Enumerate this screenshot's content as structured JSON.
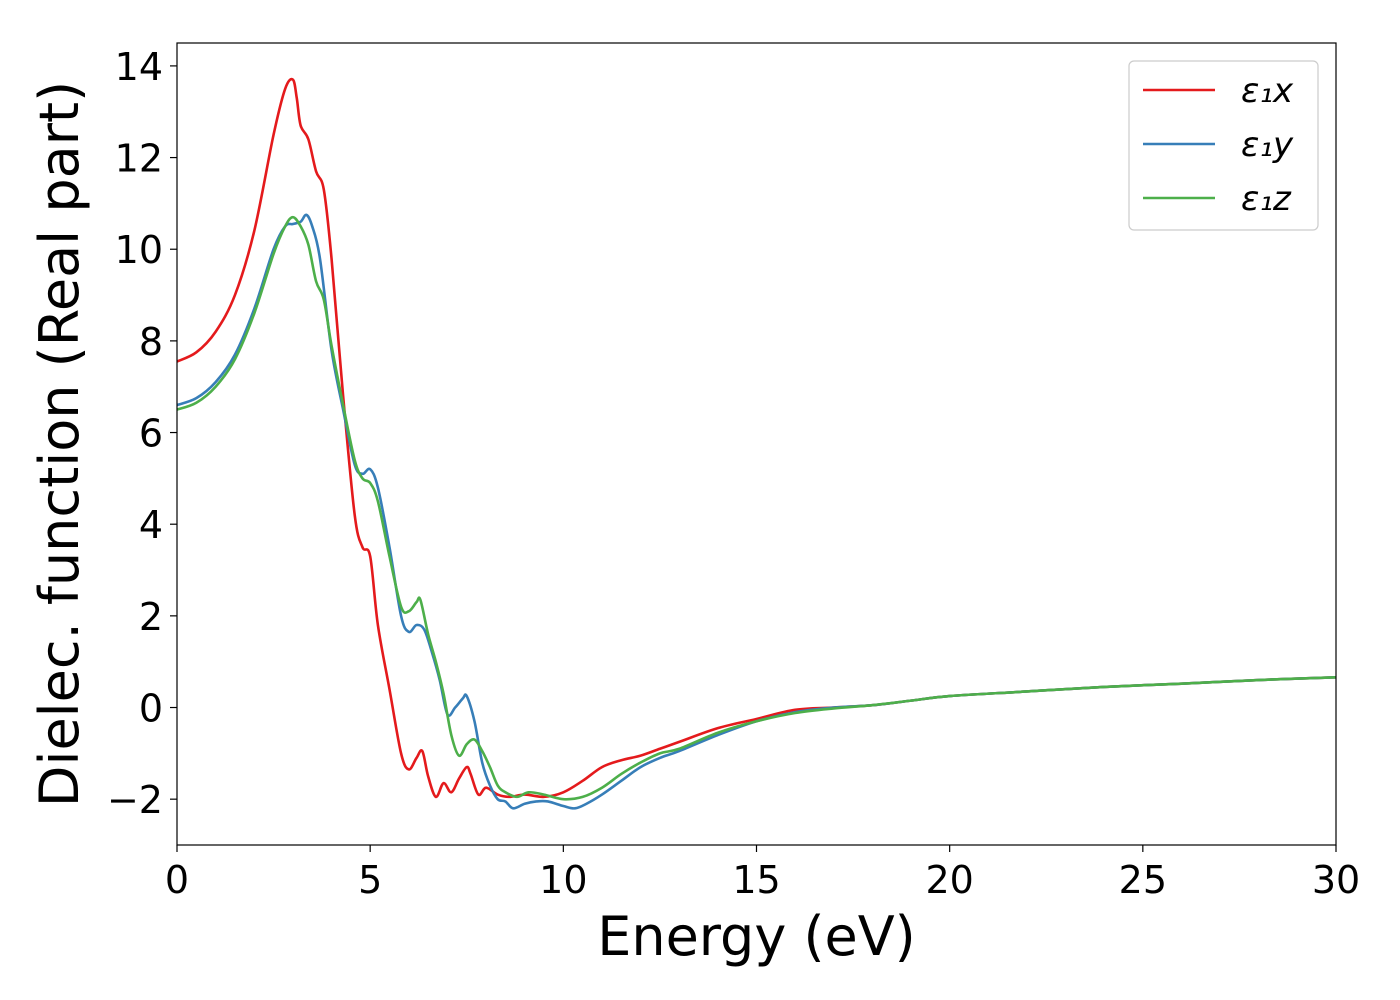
{
  "chart_data": {
    "type": "line",
    "title": "",
    "xlabel": "Energy (eV)",
    "ylabel": "Dielec. function (Real part)",
    "xlim": [
      0,
      30
    ],
    "ylim": [
      -3,
      14.5
    ],
    "xticks": [
      0,
      5,
      10,
      15,
      20,
      25,
      30
    ],
    "xtick_labels": [
      "0",
      "5",
      "10",
      "15",
      "20",
      "25",
      "30"
    ],
    "yticks": [
      -2,
      0,
      2,
      4,
      6,
      8,
      10,
      12,
      14
    ],
    "ytick_labels": [
      "−2",
      "0",
      "2",
      "4",
      "6",
      "8",
      "10",
      "12",
      "14"
    ],
    "grid": false,
    "legend_position": "top-right",
    "series": [
      {
        "name": "ε₁x",
        "color": "#e41a1c",
        "x": [
          0,
          0.5,
          1.0,
          1.5,
          2.0,
          2.5,
          2.8,
          3.0,
          3.1,
          3.2,
          3.4,
          3.6,
          3.8,
          4.0,
          4.3,
          4.6,
          4.8,
          5.0,
          5.2,
          5.5,
          5.8,
          6.0,
          6.2,
          6.35,
          6.5,
          6.7,
          6.9,
          7.1,
          7.3,
          7.5,
          7.6,
          7.8,
          8.0,
          8.3,
          8.6,
          9.0,
          9.5,
          10.0,
          10.5,
          11.0,
          11.5,
          12.0,
          12.5,
          13.0,
          14.0,
          15.0,
          16.0,
          17.0,
          18.0,
          19.0,
          20.0,
          22.0,
          24.0,
          26.0,
          28.0,
          30.0
        ],
        "y": [
          7.55,
          7.75,
          8.2,
          9.0,
          10.4,
          12.5,
          13.5,
          13.7,
          13.3,
          12.7,
          12.4,
          11.7,
          11.3,
          9.8,
          6.8,
          4.2,
          3.5,
          3.3,
          1.8,
          0.4,
          -1.0,
          -1.35,
          -1.1,
          -0.95,
          -1.5,
          -1.95,
          -1.65,
          -1.85,
          -1.55,
          -1.3,
          -1.45,
          -1.9,
          -1.75,
          -1.9,
          -1.95,
          -1.9,
          -1.95,
          -1.85,
          -1.6,
          -1.3,
          -1.15,
          -1.05,
          -0.9,
          -0.75,
          -0.45,
          -0.25,
          -0.05,
          0.0,
          0.05,
          0.15,
          0.25,
          0.35,
          0.45,
          0.52,
          0.6,
          0.66
        ]
      },
      {
        "name": "ε₁y",
        "color": "#377eb8",
        "x": [
          0,
          0.5,
          1.0,
          1.5,
          2.0,
          2.5,
          2.8,
          3.0,
          3.2,
          3.35,
          3.5,
          3.7,
          4.0,
          4.3,
          4.6,
          4.8,
          5.0,
          5.2,
          5.5,
          5.8,
          6.0,
          6.2,
          6.4,
          6.6,
          6.8,
          7.0,
          7.2,
          7.4,
          7.5,
          7.7,
          7.9,
          8.1,
          8.3,
          8.5,
          8.7,
          9.0,
          9.3,
          9.6,
          10.0,
          10.3,
          10.6,
          11.0,
          11.5,
          12.0,
          12.5,
          13.0,
          14.0,
          15.0,
          16.0,
          17.0,
          18.0,
          19.0,
          20.0,
          22.0,
          24.0,
          26.0,
          28.0,
          30.0
        ],
        "y": [
          6.6,
          6.75,
          7.1,
          7.7,
          8.7,
          10.0,
          10.5,
          10.55,
          10.6,
          10.75,
          10.5,
          9.8,
          7.8,
          6.5,
          5.3,
          5.1,
          5.2,
          4.8,
          3.5,
          2.0,
          1.65,
          1.8,
          1.7,
          1.2,
          0.6,
          -0.15,
          0.0,
          0.2,
          0.25,
          -0.3,
          -1.2,
          -1.7,
          -2.0,
          -2.05,
          -2.2,
          -2.1,
          -2.05,
          -2.05,
          -2.15,
          -2.2,
          -2.1,
          -1.9,
          -1.6,
          -1.3,
          -1.1,
          -0.95,
          -0.6,
          -0.3,
          -0.1,
          0.0,
          0.05,
          0.15,
          0.25,
          0.35,
          0.45,
          0.52,
          0.6,
          0.66
        ]
      },
      {
        "name": "ε₁z",
        "color": "#4daf4a",
        "x": [
          0,
          0.5,
          1.0,
          1.5,
          2.0,
          2.5,
          2.8,
          3.0,
          3.2,
          3.4,
          3.6,
          3.8,
          4.0,
          4.3,
          4.6,
          4.8,
          5.0,
          5.2,
          5.5,
          5.8,
          6.0,
          6.2,
          6.3,
          6.5,
          6.7,
          6.9,
          7.1,
          7.3,
          7.5,
          7.7,
          7.9,
          8.1,
          8.3,
          8.5,
          8.8,
          9.1,
          9.5,
          10.0,
          10.5,
          11.0,
          11.5,
          12.0,
          12.5,
          13.0,
          14.0,
          15.0,
          16.0,
          17.0,
          18.0,
          19.0,
          20.0,
          22.0,
          24.0,
          26.0,
          28.0,
          30.0
        ],
        "y": [
          6.5,
          6.65,
          7.0,
          7.6,
          8.6,
          9.9,
          10.5,
          10.7,
          10.5,
          10.1,
          9.3,
          8.9,
          7.9,
          6.6,
          5.4,
          5.0,
          4.9,
          4.5,
          3.3,
          2.2,
          2.1,
          2.3,
          2.35,
          1.6,
          1.0,
          0.3,
          -0.6,
          -1.05,
          -0.8,
          -0.7,
          -0.95,
          -1.3,
          -1.7,
          -1.85,
          -1.95,
          -1.85,
          -1.9,
          -2.0,
          -1.95,
          -1.75,
          -1.45,
          -1.2,
          -1.0,
          -0.9,
          -0.55,
          -0.3,
          -0.12,
          -0.02,
          0.05,
          0.15,
          0.25,
          0.35,
          0.45,
          0.52,
          0.6,
          0.66
        ]
      }
    ]
  }
}
